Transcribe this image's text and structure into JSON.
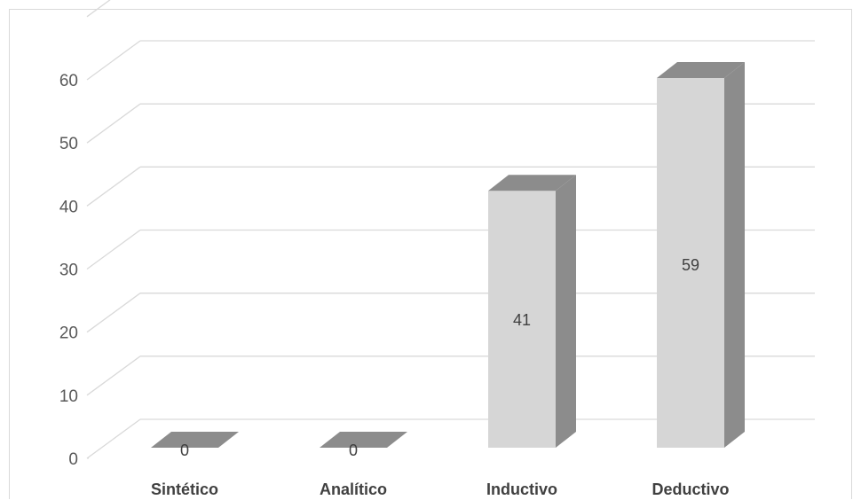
{
  "chart_data": {
    "type": "bar",
    "title": "",
    "xlabel": "",
    "ylabel": "",
    "categories": [
      "Sintético",
      "Analítico",
      "Inductivo",
      "Deductivo"
    ],
    "values": [
      0,
      0,
      41,
      59
    ],
    "data_labels": [
      "0",
      "0",
      "41",
      "59"
    ],
    "yticks": [
      "0",
      "10",
      "20",
      "30",
      "40",
      "50",
      "60"
    ],
    "ylim": [
      0,
      70
    ],
    "grid": true,
    "legend": "none",
    "style": "3d-column",
    "colors": {
      "bar_front": "#d6d6d6",
      "bar_side": "#8c8c8c",
      "bar_top": "#8c8c8c",
      "grid": "#d9d9d9",
      "tick_text": "#595959"
    }
  }
}
